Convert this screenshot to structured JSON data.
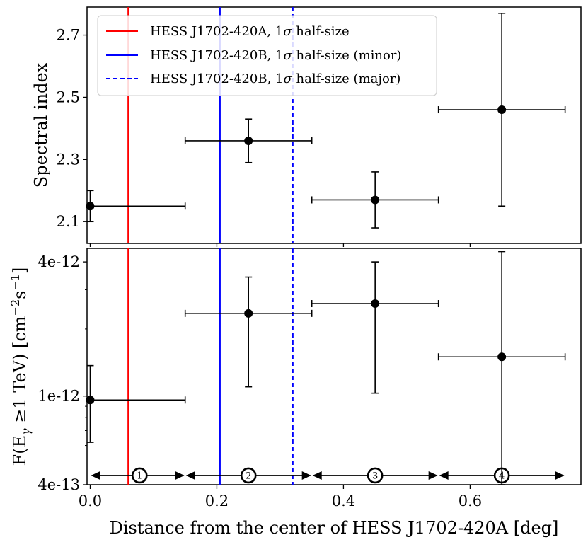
{
  "chart_data": [
    {
      "type": "scatter",
      "panel": "top",
      "ylabel": "Spectral index",
      "xlim": [
        -0.005,
        0.775
      ],
      "ylim": [
        2.03,
        2.79
      ],
      "xticks": [
        0.0,
        0.2,
        0.4,
        0.6
      ],
      "yticks": [
        2.1,
        2.3,
        2.5,
        2.7
      ],
      "ytick_labels": [
        "2.1",
        "2.3",
        "2.5",
        "2.7"
      ],
      "points": [
        {
          "x": 0.0,
          "x_lo": 0.0,
          "x_hi": 0.15,
          "y": 2.15,
          "y_lo": 2.1,
          "y_hi": 2.2
        },
        {
          "x": 0.25,
          "x_lo": 0.15,
          "x_hi": 0.35,
          "y": 2.36,
          "y_lo": 2.29,
          "y_hi": 2.43
        },
        {
          "x": 0.45,
          "x_lo": 0.35,
          "x_hi": 0.55,
          "y": 2.17,
          "y_lo": 2.08,
          "y_hi": 2.26
        },
        {
          "x": 0.65,
          "x_lo": 0.55,
          "x_hi": 0.75,
          "y": 2.46,
          "y_lo": 2.15,
          "y_hi": 2.77
        }
      ],
      "vlines": [
        {
          "x": 0.06,
          "color": "#ff0000",
          "style": "solid",
          "label": "HESS J1702-420A, 1σ half-size"
        },
        {
          "x": 0.205,
          "color": "#0000ff",
          "style": "solid",
          "label": "HESS J1702-420B, 1σ half-size (minor)"
        },
        {
          "x": 0.32,
          "color": "#0000ff",
          "style": "dashed",
          "label": "HESS J1702-420B, 1σ half-size (major)"
        }
      ],
      "legend_position": "top-left"
    },
    {
      "type": "scatter",
      "panel": "bottom",
      "yscale": "log",
      "ylabel": "F(E_γ ≥1 TeV) [cm^-2 s^-1]",
      "xlabel": "Distance from the center of HESS J1702-420A [deg]",
      "xlim": [
        -0.005,
        0.775
      ],
      "ylim": [
        4e-13,
        4.6e-12
      ],
      "xticks": [
        0.0,
        0.2,
        0.4,
        0.6
      ],
      "xtick_labels": [
        "0.0",
        "0.2",
        "0.4",
        "0.6"
      ],
      "yticks": [
        4e-13,
        1e-12,
        4e-12
      ],
      "ytick_labels": [
        "4e-13",
        "1e-12",
        "4e-12"
      ],
      "points": [
        {
          "x": 0.0,
          "x_lo": 0.0,
          "x_hi": 0.15,
          "y": 9.6e-13,
          "y_lo": 6.2e-13,
          "y_hi": 1.37e-12
        },
        {
          "x": 0.25,
          "x_lo": 0.15,
          "x_hi": 0.35,
          "y": 2.35e-12,
          "y_lo": 1.1e-12,
          "y_hi": 3.42e-12
        },
        {
          "x": 0.45,
          "x_lo": 0.35,
          "x_hi": 0.55,
          "y": 2.6e-12,
          "y_lo": 1.03e-12,
          "y_hi": 4e-12
        },
        {
          "x": 0.65,
          "x_lo": 0.55,
          "x_hi": 0.75,
          "y": 1.5e-12,
          "y_lo": 4e-13,
          "y_hi": 4.45e-12
        }
      ],
      "regions": [
        {
          "label": "1",
          "x_lo": 0.0,
          "x_hi": 0.15,
          "x_circle": 0.078
        },
        {
          "label": "2",
          "x_lo": 0.15,
          "x_hi": 0.35,
          "x_circle": 0.25
        },
        {
          "label": "3",
          "x_lo": 0.35,
          "x_hi": 0.55,
          "x_circle": 0.45
        },
        {
          "label": "4",
          "x_lo": 0.55,
          "x_hi": 0.75,
          "x_circle": 0.65
        }
      ],
      "region_arrow_level": 4.4e-13
    }
  ],
  "legend": {
    "entries": [
      {
        "prefix": "HESS J1702-420A, 1",
        "suffix": " half-size"
      },
      {
        "prefix": "HESS J1702-420B, 1",
        "suffix": " half-size (minor)"
      },
      {
        "prefix": "HESS J1702-420B, 1",
        "suffix": " half-size (major)"
      }
    ],
    "sigma": "σ"
  },
  "labels": {
    "top_ylabel": "Spectral index",
    "bottom_ylabel_main": "F(E",
    "bottom_ylabel_sub": "γ",
    "bottom_ylabel_mid": " ≥1 TeV) [cm",
    "bottom_ylabel_exp1": "−2",
    "bottom_ylabel_s": "s",
    "bottom_ylabel_exp2": "−1",
    "bottom_ylabel_end": "]",
    "xlabel": "Distance from the center of HESS J1702-420A [deg]"
  }
}
